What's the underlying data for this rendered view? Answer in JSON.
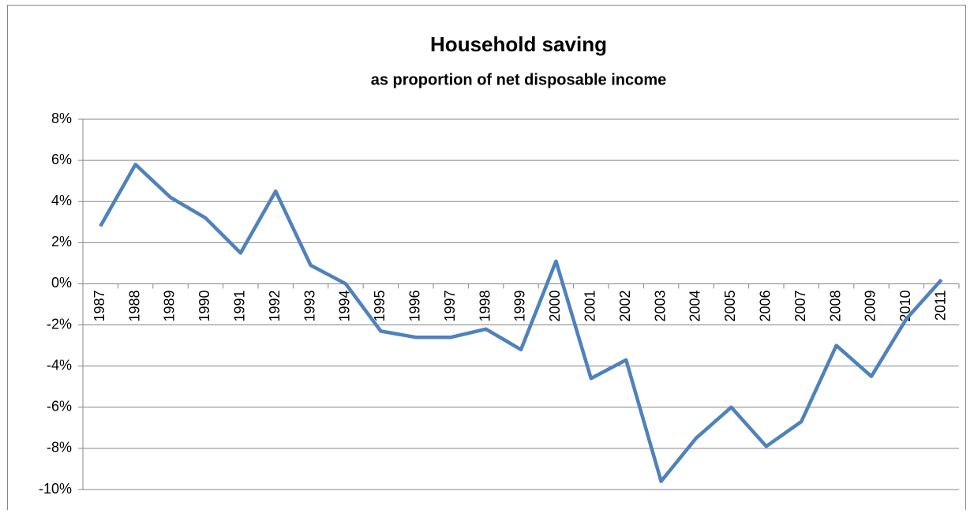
{
  "chart_data": {
    "type": "line",
    "title": "Household saving",
    "subtitle": "as proportion of net disposable income",
    "categories": [
      "1987",
      "1988",
      "1989",
      "1990",
      "1991",
      "1992",
      "1993",
      "1994",
      "1995",
      "1996",
      "1997",
      "1998",
      "1999",
      "2000",
      "2001",
      "2002",
      "2003",
      "2004",
      "2005",
      "2006",
      "2007",
      "2008",
      "2009",
      "2010",
      "2011"
    ],
    "values": [
      2.8,
      5.8,
      4.2,
      3.2,
      1.5,
      4.5,
      0.9,
      0.0,
      -2.3,
      -2.6,
      -2.6,
      -2.2,
      -3.2,
      1.1,
      -4.6,
      -3.7,
      -9.6,
      -7.5,
      -6.0,
      -7.9,
      -6.7,
      -3.0,
      -4.5,
      -1.7,
      0.2
    ],
    "color": "#4f81bd",
    "ylim": [
      -10,
      8
    ],
    "yticks": [
      {
        "value": -10,
        "label": "-10%"
      },
      {
        "value": -8,
        "label": "-8%"
      },
      {
        "value": -6,
        "label": "-6%"
      },
      {
        "value": -4,
        "label": "-4%"
      },
      {
        "value": -2,
        "label": "-2%"
      },
      {
        "value": 0,
        "label": "0%"
      },
      {
        "value": 2,
        "label": "2%"
      },
      {
        "value": 4,
        "label": "4%"
      },
      {
        "value": 6,
        "label": "6%"
      },
      {
        "value": 8,
        "label": "8%"
      }
    ],
    "grid": true
  }
}
